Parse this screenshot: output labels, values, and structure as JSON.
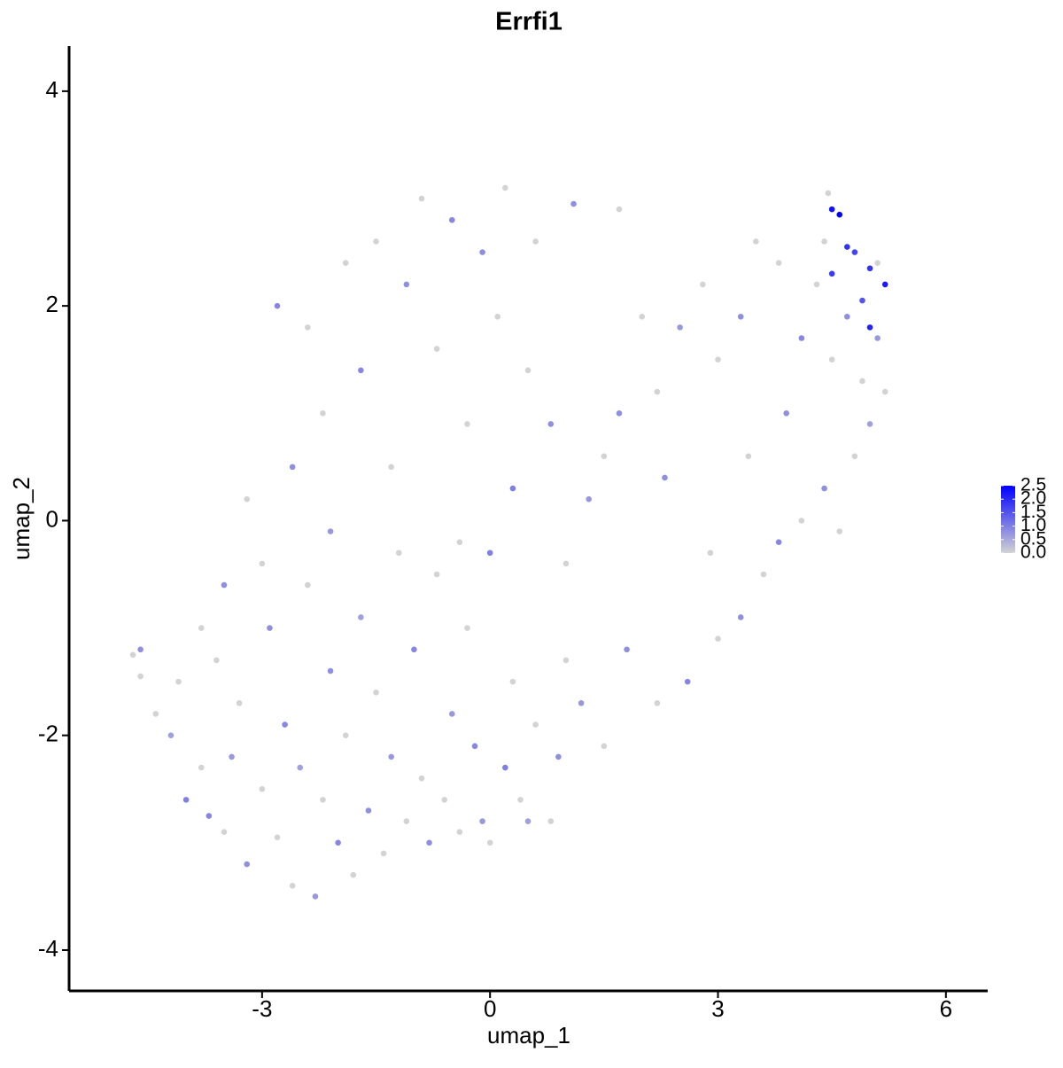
{
  "chart_data": {
    "type": "scatter",
    "title": "Errfi1",
    "x_label": "umap_1",
    "y_label": "umap_2",
    "xlim": [
      -5.54,
      6.55
    ],
    "ylim": [
      -4.38,
      4.42
    ],
    "xticks": [
      -3,
      0,
      3,
      6
    ],
    "yticks": [
      -4,
      -2,
      0,
      2,
      4
    ],
    "grid": false,
    "color_low": "#d3d3d3",
    "color_high": "#0000ff",
    "color_lim": [
      0,
      2.5
    ],
    "color_ticks": [
      {
        "value": 0,
        "label": "0.0"
      },
      0.5,
      {
        "value": 1,
        "label": "1.0"
      },
      1.5,
      {
        "value": 2,
        "label": "2.0"
      },
      2.5
    ],
    "x": [
      -4.7,
      -4.6,
      -4.6,
      -4.4,
      -4.2,
      -4.1,
      -4.0,
      -3.8,
      -3.7,
      -3.6,
      -3.5,
      -3.4,
      -3.3,
      -3.2,
      -3.0,
      -2.9,
      -2.8,
      -2.7,
      -2.6,
      -2.5,
      -2.3,
      -2.4,
      -2.2,
      -2.1,
      -2.0,
      -1.9,
      -1.8,
      -1.7,
      -1.6,
      -1.5,
      -1.4,
      -1.3,
      -1.2,
      -1.1,
      -1.0,
      -0.9,
      -0.8,
      -0.7,
      -0.6,
      -0.5,
      -0.4,
      -0.3,
      -0.2,
      -0.1,
      0.0,
      0.2,
      0.3,
      0.4,
      0.5,
      0.6,
      0.8,
      0.9,
      1.0,
      1.2,
      1.5,
      1.8,
      2.2,
      2.6,
      3.0,
      3.3,
      3.6,
      3.8,
      4.1,
      4.4,
      4.6,
      4.8,
      5.0,
      5.2,
      5.1,
      4.9,
      4.7,
      4.5,
      4.3,
      4.1,
      3.8,
      3.5,
      3.3,
      3.0,
      2.8,
      2.5,
      2.2,
      2.0,
      1.7,
      1.5,
      1.3,
      1.0,
      0.8,
      0.5,
      0.3,
      0.1,
      -0.1,
      -0.3,
      -0.5,
      -0.7,
      -0.9,
      -1.1,
      -1.3,
      -1.5,
      -1.7,
      -1.9,
      -2.1,
      -2.2,
      -2.4,
      -2.6,
      -2.8,
      -3.0,
      -3.2,
      -3.5,
      -3.8,
      0.2,
      0.6,
      1.1,
      1.7,
      2.3,
      2.9,
      3.4,
      3.9,
      -0.4,
      0.0,
      5.1,
      4.4,
      4.45,
      4.5,
      4.6,
      4.7,
      4.8,
      5.0,
      5.2,
      5.0,
      4.5,
      4.9
    ],
    "values": [
      -1.25,
      -1.2,
      -1.45,
      -1.8,
      -2.0,
      -1.5,
      -2.6,
      -2.3,
      -2.75,
      -1.3,
      -2.9,
      -2.2,
      -1.7,
      -3.2,
      -2.5,
      -1.0,
      -2.95,
      -1.9,
      -3.4,
      -2.3,
      -3.5,
      -0.6,
      -2.6,
      -1.4,
      -3.0,
      -2.0,
      -3.3,
      -0.9,
      -2.7,
      -1.6,
      -3.1,
      -2.2,
      -0.3,
      -2.8,
      -1.2,
      -2.4,
      -3.0,
      -0.5,
      -2.6,
      -1.8,
      -2.9,
      -1.0,
      -2.1,
      -2.8,
      -3.0,
      -2.3,
      -1.5,
      -2.6,
      -2.8,
      -1.9,
      -2.8,
      -2.2,
      -1.3,
      -1.7,
      -2.1,
      -1.2,
      -1.7,
      -1.5,
      -1.1,
      -0.9,
      -0.5,
      -0.2,
      0.0,
      0.3,
      -0.1,
      0.6,
      0.9,
      1.2,
      1.7,
      1.3,
      1.9,
      1.5,
      2.2,
      1.7,
      2.4,
      2.6,
      1.9,
      1.5,
      2.2,
      1.8,
      1.2,
      1.9,
      1.0,
      0.6,
      0.2,
      -0.4,
      0.9,
      1.4,
      0.3,
      1.9,
      2.5,
      0.9,
      2.8,
      1.6,
      3.0,
      2.2,
      0.5,
      2.6,
      1.4,
      2.4,
      -0.1,
      1.0,
      1.8,
      0.5,
      2.0,
      -0.4,
      0.2,
      -0.6,
      -1.0,
      3.1,
      2.6,
      2.95,
      2.9,
      0.4,
      -0.3,
      0.6,
      1.0,
      -0.2,
      -0.3,
      2.4,
      2.6,
      3.05,
      2.9,
      2.85,
      2.55,
      2.5,
      2.35,
      2.2,
      1.8,
      2.3,
      2.05
    ],
    "expression": [
      0,
      0.8,
      0,
      0,
      0.6,
      0,
      1,
      0,
      0.9,
      0,
      0,
      0.7,
      0,
      0.8,
      0,
      0.8,
      0,
      0.9,
      0,
      0.6,
      0.7,
      0,
      0,
      0.8,
      0.9,
      0,
      0,
      0.6,
      0.8,
      0,
      0,
      0.7,
      0,
      0,
      0.9,
      0,
      0.8,
      0,
      0,
      0.7,
      0,
      0,
      0.9,
      0.7,
      0,
      1.0,
      0,
      0,
      0.6,
      0,
      0,
      0.8,
      0,
      0.7,
      0,
      0.8,
      0,
      0.9,
      0,
      0.8,
      0,
      0.9,
      0,
      0.8,
      0,
      0,
      0.6,
      0,
      0.7,
      0,
      0.8,
      0,
      0,
      0.9,
      0,
      0,
      0.8,
      0,
      0,
      0.7,
      0,
      0,
      0.8,
      0,
      0.7,
      0,
      0.8,
      0,
      1.0,
      0,
      0.8,
      0,
      0.9,
      0,
      0,
      0.8,
      0,
      0,
      0.9,
      0,
      0.7,
      0,
      0,
      0.8,
      0.9,
      0,
      0,
      0.8,
      0,
      0,
      0,
      0.8,
      0,
      0.8,
      0,
      0,
      0.8,
      0,
      1.0,
      0,
      0,
      0,
      2.3,
      2.5,
      1.9,
      1.7,
      1.9,
      2.2,
      2.1,
      1.8,
      1.5
    ]
  }
}
